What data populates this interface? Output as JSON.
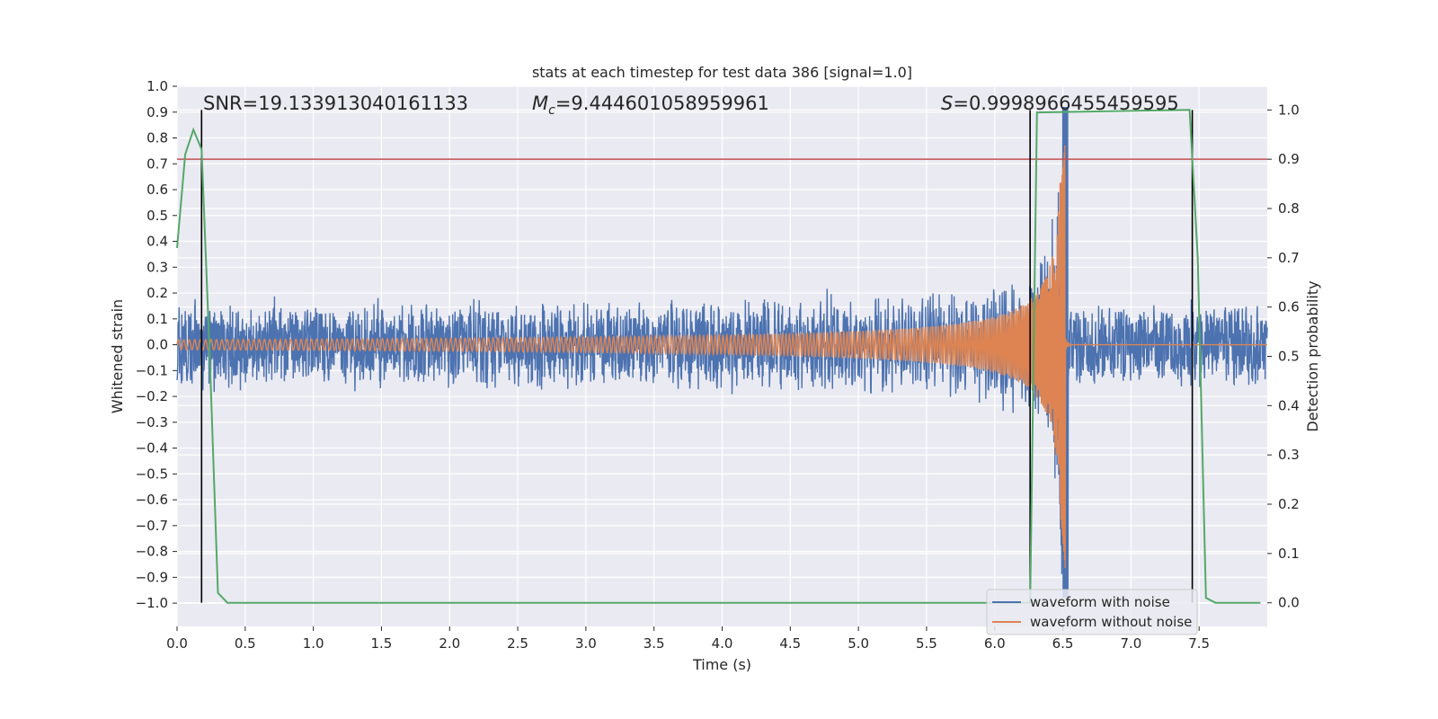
{
  "chart_data": {
    "type": "line",
    "title": "stats at each timestep for test data 386 [signal=1.0]",
    "xlabel": "Time (s)",
    "ylabel_left": "Whitened strain",
    "ylabel_right": "Detection probability",
    "xlim": [
      0.0,
      8.0
    ],
    "ylim_left": [
      -1.09,
      1.0
    ],
    "ylim_right": [
      -0.048,
      1.048
    ],
    "x_ticks": [
      "0.0",
      "0.5",
      "1.0",
      "1.5",
      "2.0",
      "2.5",
      "3.0",
      "3.5",
      "4.0",
      "4.5",
      "5.0",
      "5.5",
      "6.0",
      "6.5",
      "7.0",
      "7.5"
    ],
    "y_left_ticks": [
      "1.0",
      "0.9",
      "0.8",
      "0.7",
      "0.6",
      "0.5",
      "0.4",
      "0.3",
      "0.2",
      "0.1",
      "0.0",
      "−0.1",
      "−0.2",
      "−0.3",
      "−0.4",
      "−0.5",
      "−0.6",
      "−0.7",
      "−0.8",
      "−0.9",
      "−1.0"
    ],
    "y_right_ticks": [
      "1.0",
      "0.9",
      "0.8",
      "0.7",
      "0.6",
      "0.5",
      "0.4",
      "0.3",
      "0.2",
      "0.1",
      "0.0"
    ],
    "grid": true,
    "legend_placement": "lower-right",
    "annotations": {
      "snr_label": "SNR=19.133913040161133",
      "mc_prefix": "M",
      "mc_sub": "c",
      "mc_value": "=9.444601058959961",
      "s_prefix": "S",
      "s_value": "=0.9998966455459595"
    },
    "threshold_right": 0.9,
    "vertical_lines_x": [
      0.18,
      6.26,
      7.45
    ],
    "merger_time": 6.52,
    "series": [
      {
        "name": "waveform with noise",
        "color": "#4c72b0",
        "axis": "left",
        "noise_amplitude": 0.16
      },
      {
        "name": "waveform without noise",
        "color": "#dd8452",
        "axis": "left",
        "start_amplitude": 0.02,
        "peak": 0.8,
        "trough": -0.88
      },
      {
        "name": "detection probability",
        "color": "#55a868",
        "axis": "right",
        "x": [
          0.0,
          0.06,
          0.12,
          0.18,
          0.24,
          0.3,
          0.37,
          6.26,
          6.31,
          7.43,
          7.49,
          7.55,
          7.62,
          7.95
        ],
        "y": [
          0.72,
          0.91,
          0.96,
          0.92,
          0.5,
          0.02,
          0.0,
          0.0,
          0.995,
          1.0,
          0.7,
          0.01,
          0.0,
          0.0
        ]
      }
    ],
    "colors": {
      "threshold": "#c44e52",
      "vertical": "#000000",
      "background": "#eaeaf2",
      "grid": "#ffffff"
    }
  }
}
